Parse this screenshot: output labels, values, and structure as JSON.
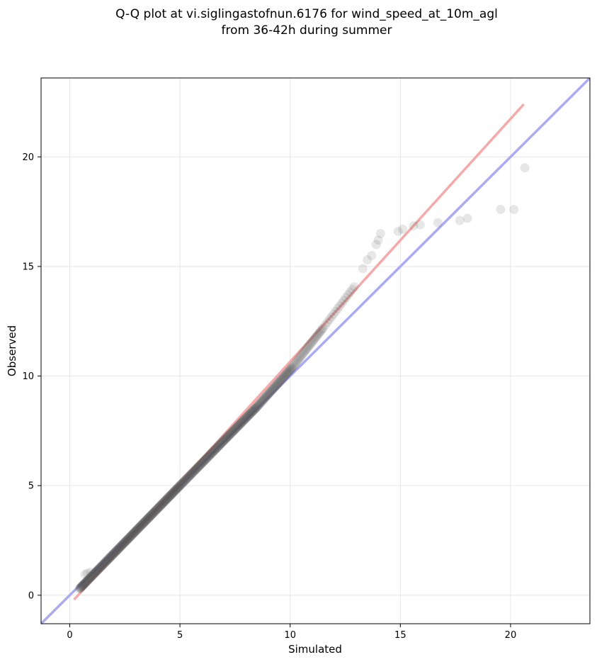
{
  "chart_data": {
    "type": "scatter",
    "title_line1": "Q-Q plot at vi.siglingastofnun.6176 for wind_speed_at_10m_agl",
    "title_line2": "from 36-42h during summer",
    "xlabel": "Simulated",
    "ylabel": "Observed",
    "xlim": [
      -1.3,
      23.6
    ],
    "ylim": [
      -1.3,
      23.6
    ],
    "xticks": [
      "0",
      "5",
      "10",
      "15",
      "20"
    ],
    "yticks": [
      "0",
      "5",
      "10",
      "15",
      "20"
    ],
    "grid": true,
    "legend": "none",
    "reference_line": {
      "name": "1:1",
      "color": "#aaaaf5",
      "x": [
        -1.3,
        23.6
      ],
      "y": [
        -1.3,
        23.6
      ]
    },
    "fit_line": {
      "color": "#f5a9a9",
      "x": [
        0.2,
        20.6
      ],
      "y": [
        -0.2,
        22.4
      ]
    },
    "point_color": "#555555",
    "dense_segments": [
      {
        "x0": 0.45,
        "y0": 0.3,
        "x1": 5.0,
        "y1": 5.0,
        "n": 260
      },
      {
        "x0": 5.0,
        "y0": 5.0,
        "x1": 8.5,
        "y1": 8.6,
        "n": 170
      },
      {
        "x0": 8.5,
        "y0": 8.6,
        "x1": 10.1,
        "y1": 10.4,
        "n": 60
      },
      {
        "x0": 10.1,
        "y0": 10.4,
        "x1": 11.5,
        "y1": 12.2,
        "n": 30
      },
      {
        "x0": 11.5,
        "y0": 12.2,
        "x1": 13.0,
        "y1": 14.2,
        "n": 16
      }
    ],
    "sparse_points": [
      [
        0.6,
        0.45
      ],
      [
        0.7,
        0.95
      ],
      [
        0.8,
        1.0
      ],
      [
        0.95,
        1.05
      ],
      [
        13.3,
        14.9
      ],
      [
        13.5,
        15.3
      ],
      [
        13.7,
        15.5
      ],
      [
        13.9,
        16.0
      ],
      [
        14.0,
        16.2
      ],
      [
        14.1,
        16.5
      ],
      [
        14.9,
        16.6
      ],
      [
        15.1,
        16.7
      ],
      [
        15.6,
        16.85
      ],
      [
        15.9,
        16.9
      ],
      [
        16.7,
        17.0
      ],
      [
        17.7,
        17.1
      ],
      [
        18.05,
        17.2
      ],
      [
        19.55,
        17.6
      ],
      [
        20.15,
        17.6
      ],
      [
        20.65,
        19.5
      ]
    ]
  }
}
